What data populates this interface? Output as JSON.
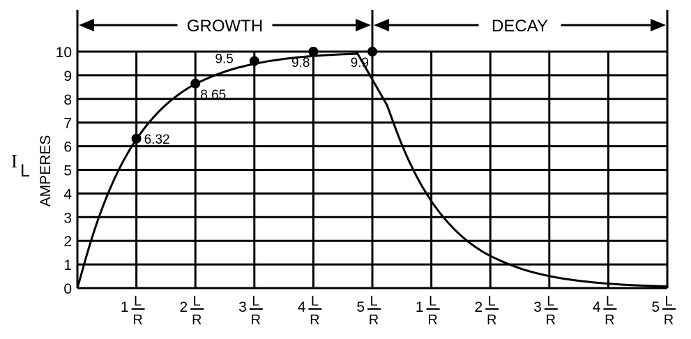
{
  "chart_data": {
    "type": "line",
    "title": "",
    "sections": [
      {
        "label": "GROWTH",
        "x_start": 0,
        "x_end": 5
      },
      {
        "label": "DECAY",
        "x_start": 5,
        "x_end": 10
      }
    ],
    "ylabel": {
      "symbol": "I",
      "subscript": "L",
      "units": "AMPERES"
    },
    "ylim": [
      0,
      10
    ],
    "y_ticks": [
      "0",
      "1",
      "2",
      "3",
      "4",
      "5",
      "6",
      "7",
      "8",
      "9",
      "10"
    ],
    "x_divisions": 10,
    "x_ticks": [
      {
        "x": 1,
        "coef": "1",
        "num": "L",
        "den": "R"
      },
      {
        "x": 2,
        "coef": "2",
        "num": "L",
        "den": "R"
      },
      {
        "x": 3,
        "coef": "3",
        "num": "L",
        "den": "R"
      },
      {
        "x": 4,
        "coef": "4",
        "num": "L",
        "den": "R"
      },
      {
        "x": 5,
        "coef": "5",
        "num": "L",
        "den": "R"
      },
      {
        "x": 6,
        "coef": "1",
        "num": "L",
        "den": "R"
      },
      {
        "x": 7,
        "coef": "2",
        "num": "L",
        "den": "R"
      },
      {
        "x": 8,
        "coef": "3",
        "num": "L",
        "den": "R"
      },
      {
        "x": 9,
        "coef": "4",
        "num": "L",
        "den": "R"
      },
      {
        "x": 10,
        "coef": "5",
        "num": "L",
        "den": "R"
      }
    ],
    "grid": true,
    "series": [
      {
        "x": [
          0,
          0.25,
          0.5,
          0.75,
          1,
          1.25,
          1.5,
          1.75,
          2,
          2.5,
          3,
          3.5,
          4,
          4.5,
          5,
          5.25,
          5.5,
          5.75,
          6,
          6.25,
          6.5,
          6.75,
          7,
          7.5,
          8,
          8.5,
          9,
          9.5,
          10
        ],
        "y": [
          0,
          2.21,
          3.93,
          5.28,
          6.32,
          7.13,
          7.77,
          8.26,
          8.65,
          9.18,
          9.5,
          9.7,
          9.82,
          9.89,
          9.93,
          7.73,
          6.02,
          4.69,
          3.65,
          2.84,
          2.21,
          1.72,
          1.34,
          0.81,
          0.49,
          0.3,
          0.18,
          0.11,
          0.07
        ]
      }
    ],
    "markers": [
      {
        "x": 1,
        "y": 6.32,
        "label": "6.32",
        "label_pos": "right"
      },
      {
        "x": 2,
        "y": 8.65,
        "label": "8.65",
        "label_pos": "below-right"
      },
      {
        "x": 3,
        "y": 9.6,
        "label": "9.5",
        "label_pos": "above-left"
      },
      {
        "x": 4,
        "y": 10,
        "label": "9.8",
        "label_pos": "below-left"
      },
      {
        "x": 5,
        "y": 10,
        "label": "9.9",
        "label_pos": "below-left"
      }
    ]
  }
}
